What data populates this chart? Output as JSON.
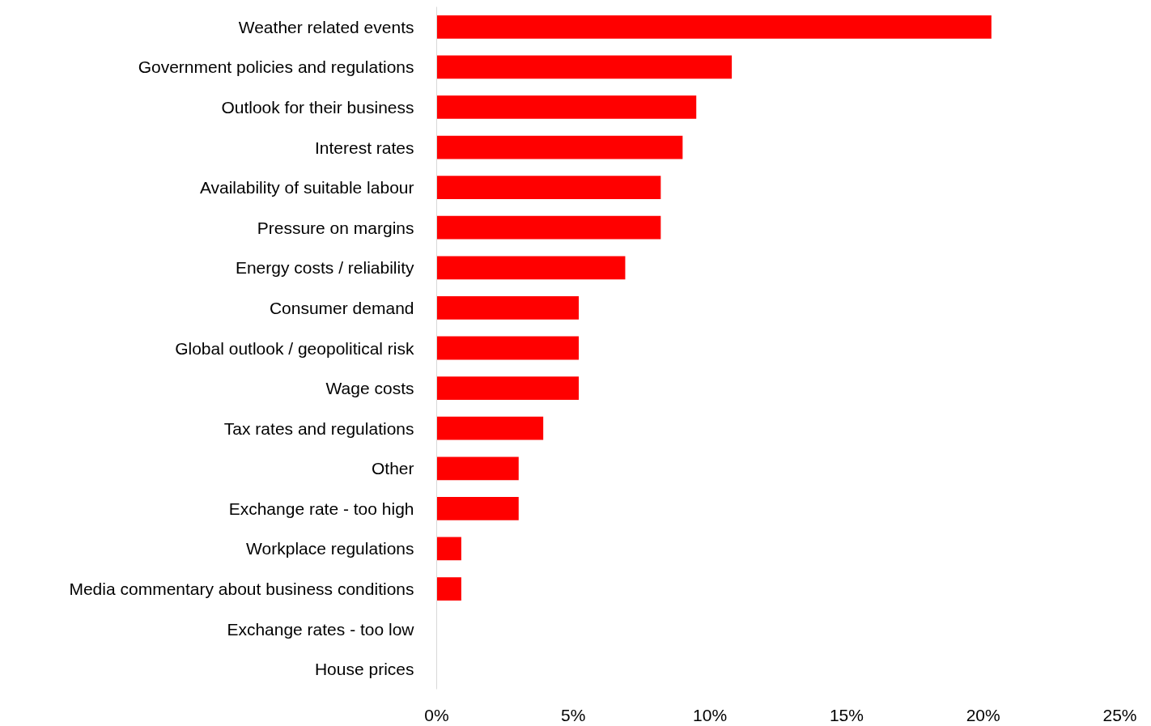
{
  "chart_data": {
    "type": "bar",
    "orientation": "horizontal",
    "categories": [
      "Weather related events",
      "Government policies and regulations",
      "Outlook for their business",
      "Interest rates",
      "Availability of suitable labour",
      "Pressure on margins",
      "Energy costs / reliability",
      "Consumer demand",
      "Global outlook / geopolitical risk",
      "Wage costs",
      "Tax rates and regulations",
      "Other",
      "Exchange rate - too high",
      "Workplace regulations",
      "Media commentary about business conditions",
      "Exchange rates - too low",
      "House prices"
    ],
    "values": [
      20.3,
      10.8,
      9.5,
      9.0,
      8.2,
      8.2,
      6.9,
      5.2,
      5.2,
      5.2,
      3.9,
      3.0,
      3.0,
      0.9,
      0.9,
      0,
      0
    ],
    "color": "#ff0000",
    "xlim": [
      0,
      25
    ],
    "xticks": [
      {
        "value": 0,
        "label": "0%"
      },
      {
        "value": 5,
        "label": "5%"
      },
      {
        "value": 10,
        "label": "10%"
      },
      {
        "value": 15,
        "label": "15%"
      },
      {
        "value": 20,
        "label": "20%"
      },
      {
        "value": 25,
        "label": "25%"
      }
    ]
  }
}
